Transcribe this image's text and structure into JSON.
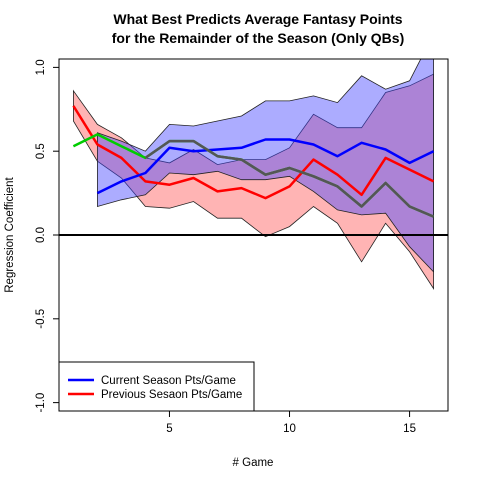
{
  "chart_data": {
    "type": "line",
    "title": [
      "What Best Predicts Average Fantasy Points",
      "for the Remainder of the Season (Only QBs)"
    ],
    "xlabel": "# Game",
    "ylabel": "Regression Coefficient",
    "xlim": [
      0.4,
      16.6
    ],
    "ylim": [
      -1.05,
      1.05
    ],
    "xticks": [
      5,
      10,
      15
    ],
    "yticks": [
      1.0,
      0.5,
      0.0,
      -0.5,
      -1.0
    ],
    "ytick_labels": [
      "1.0",
      "0.5",
      "0.0",
      "-0.5",
      "-1.0"
    ],
    "zero_line": 0,
    "grid": false,
    "legend_position": "bottom-left",
    "series": [
      {
        "name": "Current Season Pts/Game",
        "color": "#0000ff",
        "x": [
          2,
          3,
          4,
          5,
          6,
          7,
          8,
          9,
          10,
          11,
          12,
          13,
          14,
          15,
          16
        ],
        "values": [
          0.25,
          0.32,
          0.37,
          0.52,
          0.5,
          0.51,
          0.52,
          0.57,
          0.57,
          0.54,
          0.47,
          0.55,
          0.51,
          0.43,
          0.5
        ],
        "upper": [
          0.61,
          0.56,
          0.5,
          0.66,
          0.65,
          0.68,
          0.71,
          0.8,
          0.8,
          0.83,
          0.79,
          0.95,
          0.87,
          0.92,
          1.2
        ],
        "lower": [
          0.17,
          0.21,
          0.24,
          0.37,
          0.36,
          0.38,
          0.33,
          0.33,
          0.35,
          0.26,
          0.15,
          0.12,
          0.13,
          -0.07,
          -0.22
        ]
      },
      {
        "name": "Previous Sesaon Pts/Game",
        "color": "#ff0000",
        "x": [
          1,
          2,
          3,
          4,
          5,
          6,
          7,
          8,
          9,
          10,
          11,
          12,
          13,
          14,
          15,
          16
        ],
        "values": [
          0.77,
          0.54,
          0.46,
          0.32,
          0.3,
          0.34,
          0.26,
          0.28,
          0.22,
          0.29,
          0.45,
          0.36,
          0.24,
          0.46,
          0.39,
          0.32
        ],
        "upper": [
          0.86,
          0.66,
          0.58,
          0.46,
          0.43,
          0.51,
          0.42,
          0.45,
          0.45,
          0.52,
          0.72,
          0.64,
          0.64,
          0.85,
          0.89,
          0.96
        ],
        "lower": [
          0.68,
          0.44,
          0.34,
          0.17,
          0.16,
          0.2,
          0.1,
          0.1,
          -0.01,
          0.05,
          0.17,
          0.07,
          -0.16,
          0.07,
          -0.1,
          -0.32
        ]
      },
      {
        "color": "#00cc00",
        "overlap_color": "#555555",
        "x": [
          1,
          2,
          3,
          4,
          5,
          6,
          7,
          8,
          9,
          10,
          11,
          12,
          13,
          14,
          15,
          16
        ],
        "values": [
          0.53,
          0.6,
          0.53,
          0.46,
          0.56,
          0.56,
          0.47,
          0.45,
          0.36,
          0.4,
          0.35,
          0.29,
          0.17,
          0.31,
          0.17,
          0.11
        ]
      }
    ],
    "band_colors": {
      "blue": "rgba(70,70,255,0.45)",
      "red": "rgba(255,40,40,0.35)"
    }
  }
}
